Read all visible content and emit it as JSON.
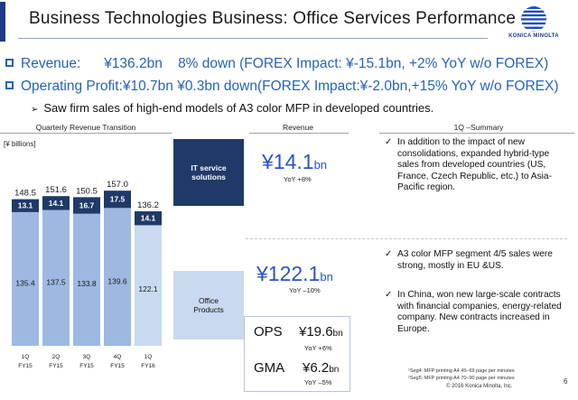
{
  "header": {
    "title": "Business Technologies Business: Office Services Performance",
    "logo_text": "KONICA MINOLTA"
  },
  "bullets": {
    "revenue": "Revenue:      ¥136.2bn    8% down (FOREX Impact: ¥-15.1bn, +2% YoY w/o FOREX)",
    "op_profit": "Operating Profit:¥10.7bn ¥0.3bn down(FOREX Impact:¥-2.0bn,+15% YoY w/o FOREX)",
    "sub": "Saw firm sales of high-end models of A3 color MFP in developed countries."
  },
  "sections": {
    "quarterly": "Quarterly Revenue Transition",
    "revenue": "Revenue",
    "summary": "1Q –Summary"
  },
  "boxes": {
    "it": "IT service solutions",
    "office": "Office Products"
  },
  "revenue_col": {
    "it_value": "¥14.1",
    "it_unit": "bn",
    "it_yoy": "YoY +8%",
    "office_value": "¥122.1",
    "office_unit": "bn",
    "office_yoy": "YoY –10%"
  },
  "ops_gma": {
    "ops_label": "OPS",
    "ops_value": "¥19.6",
    "ops_unit": "bn",
    "ops_yoy": "YoY +6%",
    "gma_label": "GMA",
    "gma_value": "¥6.2",
    "gma_unit": "bn",
    "gma_yoy": "YoY –5%"
  },
  "summary": {
    "s1": "In addition to the impact of new consolidations, expanded hybrid-type sales from developed countries (US, France, Czech Republic, etc.) to Asia-Pacific region.",
    "s2": "A3 color MFP segment 4/5 sales were strong, mostly in EU &US.",
    "s3": "In China, won new large-scale contracts with financial companies, energy-related company. New contracts increased in Europe."
  },
  "footer": {
    "note1": "¹Seg4: MFP printing A4 45–69 page per minutes",
    "note2": "¹Seg5: MFP printing A4 70–90 page per minutes",
    "copyright": "© 2016 Konica Minolta, Inc.",
    "page": "6"
  },
  "chart_data": {
    "type": "bar",
    "stacked": true,
    "title": "Quarterly Revenue Transition",
    "unit_label": "[¥ billions]",
    "categories": [
      "1Q FY15",
      "2Q FY15",
      "3Q FY15",
      "4Q FY15",
      "1Q FY16"
    ],
    "category_quarters": [
      "1Q",
      "2Q",
      "3Q",
      "4Q",
      "1Q"
    ],
    "category_years": [
      "FY15",
      "FY15",
      "FY15",
      "FY15",
      "FY16"
    ],
    "series": [
      {
        "name": "Office Products",
        "values": [
          135.4,
          137.5,
          133.8,
          139.6,
          122.1
        ],
        "color": "#9db9e2",
        "highlight": "#c9daf0"
      },
      {
        "name": "IT service solutions",
        "values": [
          13.1,
          14.1,
          16.7,
          17.5,
          14.1
        ],
        "color": "#1f3a68"
      }
    ],
    "totals": [
      148.5,
      151.6,
      150.5,
      157.0,
      136.2
    ],
    "total_labels": [
      "148.5",
      "151.6",
      "150.5",
      "157.0",
      "136.2"
    ],
    "bottom_labels": [
      "135.4",
      "137.5",
      "133.8",
      "139.6",
      "122.1"
    ],
    "top_labels": [
      "13.1",
      "14.1",
      "16.7",
      "17.5",
      "14.1"
    ],
    "ylim": [
      0,
      160
    ]
  }
}
